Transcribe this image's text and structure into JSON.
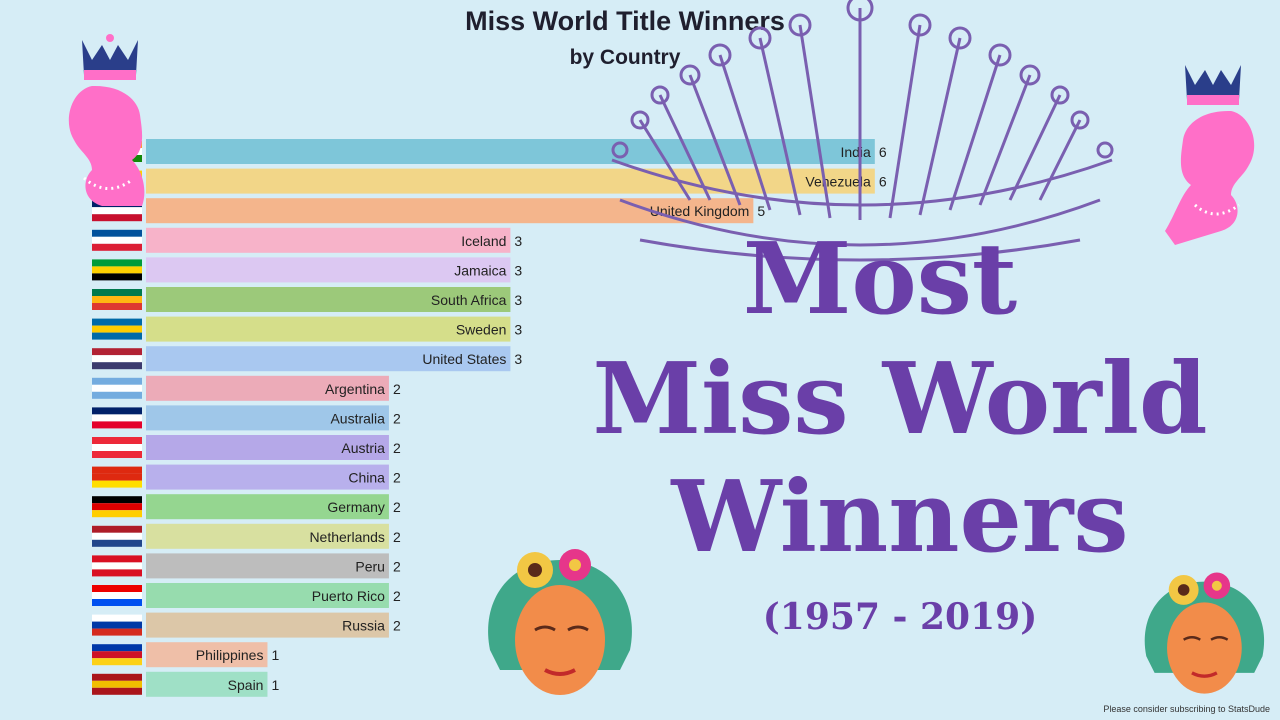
{
  "chart_data": {
    "type": "bar",
    "orientation": "horizontal",
    "title": "Miss World Title Winners",
    "subtitle": "by Country",
    "categories": [
      "India",
      "Venezuela",
      "United Kingdom",
      "Iceland",
      "Jamaica",
      "South Africa",
      "Sweden",
      "United States",
      "Argentina",
      "Australia",
      "Austria",
      "China",
      "Germany",
      "Netherlands",
      "Peru",
      "Puerto Rico",
      "Russia",
      "Philippines",
      "Spain"
    ],
    "values": [
      6,
      6,
      5,
      3,
      3,
      3,
      3,
      3,
      2,
      2,
      2,
      2,
      2,
      2,
      2,
      2,
      2,
      1,
      1
    ],
    "bar_colors": [
      "#7ec6d9",
      "#f2d688",
      "#f4b58c",
      "#f7b3c9",
      "#dcc8f2",
      "#9cc97a",
      "#d5de8a",
      "#a9c8f0",
      "#ecabb8",
      "#9fc7e9",
      "#b5a8e8",
      "#b8b0ec",
      "#95d690",
      "#d8e0a0",
      "#bdbdbd",
      "#97dcae",
      "#dcc7a8",
      "#efbfa8",
      "#9fe0c6"
    ],
    "xlim": [
      0,
      6.8
    ]
  },
  "overlay": {
    "line1": "Most",
    "line2": "Miss World",
    "line3": "Winners",
    "years": "(1957 - 2019)"
  },
  "credit": "Please consider subscribing to StatsDude",
  "colors": {
    "background": "#d6edf6",
    "overlay_text": "#6a3fa8",
    "silhouette": "#ff6fc8",
    "tiara": "#7a5fb0"
  },
  "icons": [
    "queen-silhouette-icon",
    "tiara-icon",
    "flower-crown-face-icon"
  ]
}
